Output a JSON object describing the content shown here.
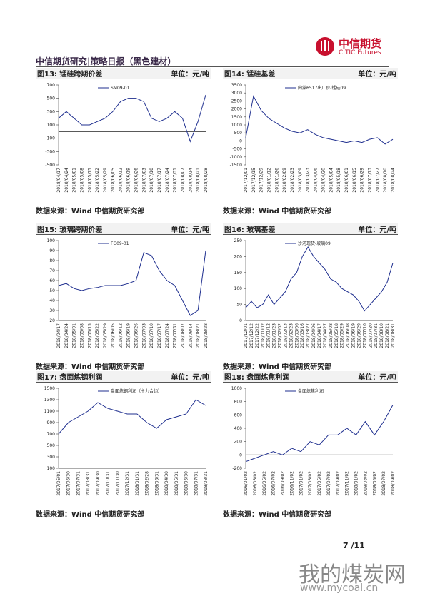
{
  "header": {
    "title": "中信期货研究|策略日报（黑色建材）",
    "logo_cn": "中信期货",
    "logo_en": "CITIC Futures"
  },
  "footer": {
    "page": "7 /11"
  },
  "watermark": {
    "cn": "我的煤炭网",
    "url": "www.mycoal.cn"
  },
  "chart_data": [
    {
      "type": "line",
      "title": "图13: 锰硅跨期价差",
      "unit": "单位：元/吨",
      "source": "数据来源：Wind 中信期货研究部",
      "categories": [
        "2018/04/17",
        "2018/04/24",
        "2018/05/01",
        "2018/05/08",
        "2018/05/15",
        "2018/05/22",
        "2018/05/29",
        "2018/06/05",
        "2018/06/12",
        "2018/06/19",
        "2018/06/26",
        "2018/07/03",
        "2018/07/10",
        "2018/07/17",
        "2018/07/24",
        "2018/07/31",
        "2018/08/07",
        "2018/08/14",
        "2018/08/21",
        "2018/08/28"
      ],
      "series": [
        {
          "name": "SM09-01",
          "color": "#1f2f8f",
          "values": [
            200,
            300,
            200,
            100,
            100,
            150,
            200,
            300,
            450,
            500,
            500,
            450,
            200,
            150,
            200,
            300,
            200,
            -150,
            150,
            550
          ]
        }
      ],
      "ylim": [
        -500,
        700
      ],
      "yticks": [
        -500,
        -300,
        -100,
        100,
        300,
        500,
        700
      ]
    },
    {
      "type": "line",
      "title": "图14: 锰硅基差",
      "unit": "单位：元/吨",
      "source": "数据来源：Wind 中信期货研究部",
      "categories": [
        "2017/12/01",
        "2017/12/15",
        "2017/12/29",
        "2018/01/12",
        "2018/01/26",
        "2018/02/09",
        "2018/02/23",
        "2018/03/09",
        "2018/03/23",
        "2018/04/06",
        "2018/04/20",
        "2018/05/04",
        "2018/05/18",
        "2018/06/01",
        "2018/06/15",
        "2018/06/29",
        "2018/07/13",
        "2018/07/27",
        "2018/08/10",
        "2018/08/24"
      ],
      "series": [
        {
          "name": "内蒙6517出厂价-锰硅09",
          "color": "#1f2f8f",
          "values": [
            200,
            2800,
            1900,
            1400,
            1100,
            800,
            600,
            500,
            700,
            400,
            200,
            100,
            0,
            -100,
            0,
            -100,
            100,
            200,
            -200,
            100
          ]
        }
      ],
      "ylim": [
        -1500,
        3500
      ],
      "yticks": [
        -1500,
        -1000,
        -500,
        0,
        500,
        1000,
        1500,
        2000,
        2500,
        3000,
        3500
      ]
    },
    {
      "type": "line",
      "title": "图15: 玻璃跨期价差",
      "unit": "单位：元/吨",
      "source": "数据来源：Wind 中信期货研究部",
      "categories": [
        "2018/04/17",
        "2018/04/24",
        "2018/05/01",
        "2018/05/08",
        "2018/05/15",
        "2018/05/22",
        "2018/05/29",
        "2018/06/05",
        "2018/06/12",
        "2018/06/19",
        "2018/06/26",
        "2018/07/03",
        "2018/07/10",
        "2018/07/17",
        "2018/07/24",
        "2018/07/31",
        "2018/08/07",
        "2018/08/14",
        "2018/08/21",
        "2018/08/28"
      ],
      "series": [
        {
          "name": "FG09-01",
          "color": "#1f2f8f",
          "values": [
            55,
            57,
            52,
            50,
            52,
            53,
            55,
            55,
            55,
            57,
            60,
            88,
            85,
            70,
            60,
            55,
            40,
            25,
            30,
            90
          ]
        }
      ],
      "ylim": [
        20,
        100
      ],
      "yticks": [
        20,
        30,
        40,
        50,
        60,
        70,
        80,
        90,
        100
      ]
    },
    {
      "type": "line",
      "title": "图16: 玻璃基差",
      "unit": "单位：元/吨",
      "source": "数据来源：Wind 中信期货研究部",
      "categories": [
        "2017/12/01",
        "2017/12/12",
        "2017/12/22",
        "2018/01/02",
        "2018/01/12",
        "2018/01/23",
        "2018/02/02",
        "2018/02/13",
        "2018/02/23",
        "2018/03/06",
        "2018/03/16",
        "2018/03/27",
        "2018/04/06",
        "2018/04/17",
        "2018/04/27",
        "2018/05/08",
        "2018/05/18",
        "2018/05/29",
        "2018/06/08",
        "2018/06/19",
        "2018/06/29",
        "2018/07/10",
        "2018/07/20",
        "2018/07/31",
        "2018/08/10",
        "2018/08/21",
        "2018/08/31"
      ],
      "series": [
        {
          "name": "沙河现货-玻璃09",
          "color": "#1f2f8f",
          "values": [
            40,
            60,
            40,
            50,
            80,
            50,
            70,
            90,
            130,
            150,
            200,
            230,
            200,
            180,
            160,
            130,
            120,
            100,
            90,
            80,
            60,
            30,
            50,
            70,
            90,
            120,
            180
          ]
        }
      ],
      "ylim": [
        0,
        250
      ],
      "yticks": [
        0,
        50,
        100,
        150,
        200,
        250
      ]
    },
    {
      "type": "line",
      "title": "图17: 盘面炼钢利润",
      "unit": "单位：元/吨",
      "source": "数据来源：Wind 中信期货研究部",
      "categories": [
        "2017/05/01",
        "2017/06/30",
        "2017/07/31",
        "2017/08/31",
        "2017/09/30",
        "2017/10/31",
        "2017/11/30",
        "2017/12/31",
        "2018/01/31",
        "2018/02/28",
        "2018/03/31",
        "2018/04/30",
        "2018/05/31",
        "2018/06/30",
        "2018/07/31",
        "2018/08/31"
      ],
      "series": [
        {
          "name": "盘面炼钢利润（主力合约）",
          "color": "#1f2f8f",
          "values": [
            700,
            900,
            1000,
            1100,
            1250,
            1150,
            1100,
            1050,
            1050,
            900,
            800,
            950,
            1000,
            1050,
            1300,
            1200
          ]
        }
      ],
      "ylim": [
        100,
        1500
      ],
      "yticks": [
        100,
        300,
        500,
        700,
        900,
        1100,
        1300,
        1500
      ]
    },
    {
      "type": "line",
      "title": "图18: 盘面炼焦利润",
      "unit": "单位：元/吨",
      "source": "数据来源：Wind 中信期货研究部",
      "categories": [
        "2016/01/02",
        "2016/03/02",
        "2016/05/02",
        "2016/07/02",
        "2016/09/02",
        "2016/11/02",
        "2017/01/02",
        "2017/03/02",
        "2017/05/02",
        "2017/07/02",
        "2017/09/02",
        "2017/11/02",
        "2018/01/02",
        "2018/03/02",
        "2018/05/02",
        "2018/07/02",
        "2018/09/02"
      ],
      "series": [
        {
          "name": "盘面炼焦利润",
          "color": "#1f2f8f",
          "values": [
            -100,
            -50,
            0,
            50,
            0,
            100,
            50,
            200,
            150,
            300,
            300,
            400,
            300,
            500,
            300,
            500,
            750
          ]
        }
      ],
      "ylim": [
        -200,
        1000
      ],
      "yticks": [
        -200,
        0,
        200,
        400,
        600,
        800,
        1000
      ]
    }
  ]
}
